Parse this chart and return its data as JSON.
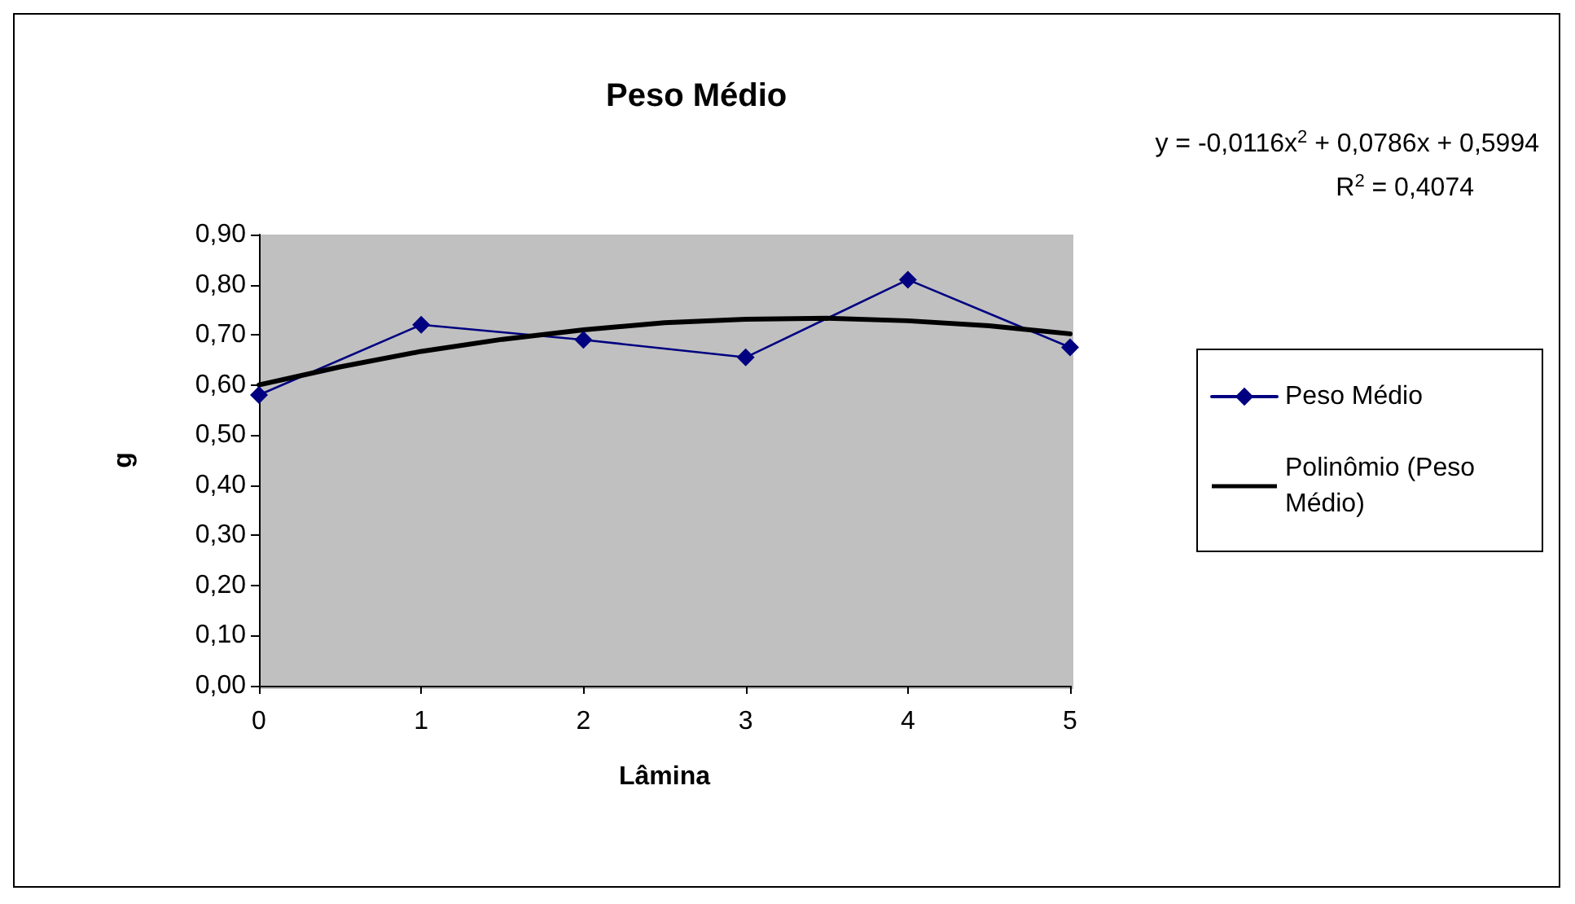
{
  "chart_data": {
    "type": "line",
    "title": "Peso Médio",
    "xlabel": "Lâmina",
    "ylabel": "g",
    "annotations": [
      "y = -0,0116x$^{2}$ + 0,0786x + 0,5994",
      "R$^{2}$ = 0,4074"
    ],
    "x": [
      0,
      1,
      2,
      3,
      4,
      5
    ],
    "series": [
      {
        "name": "Peso Médio",
        "color": "#000080",
        "values": [
          0.58,
          0.72,
          0.69,
          0.655,
          0.81,
          0.675
        ],
        "marker": "diamond",
        "line_style": "solid"
      },
      {
        "name": "Polinômio (Peso Médio)",
        "color": "#000000",
        "x": [
          0,
          0.5,
          1,
          1.5,
          2,
          2.5,
          3,
          3.5,
          4,
          4.5,
          5
        ],
        "values": [
          0.6,
          0.636,
          0.667,
          0.691,
          0.71,
          0.724,
          0.731,
          0.733,
          0.728,
          0.718,
          0.702
        ],
        "marker": "none",
        "line_style": "solid"
      }
    ],
    "xlim": [
      0,
      5
    ],
    "xticks": [
      0,
      1,
      2,
      3,
      4,
      5
    ],
    "ylim": [
      0,
      0.9
    ],
    "yticks": [
      {
        "value": 0,
        "label": "0,00"
      },
      {
        "value": 0.1,
        "label": "0,10"
      },
      {
        "value": 0.2,
        "label": "0,20"
      },
      {
        "value": 0.3,
        "label": "0,30"
      },
      {
        "value": 0.4,
        "label": "0,40"
      },
      {
        "value": 0.5,
        "label": "0,50"
      },
      {
        "value": 0.6,
        "label": "0,60"
      },
      {
        "value": 0.7,
        "label": "0,70"
      },
      {
        "value": 0.8,
        "label": "0,80"
      },
      {
        "value": 0.9,
        "label": "0,90"
      }
    ],
    "grid": false,
    "legend": "right"
  }
}
